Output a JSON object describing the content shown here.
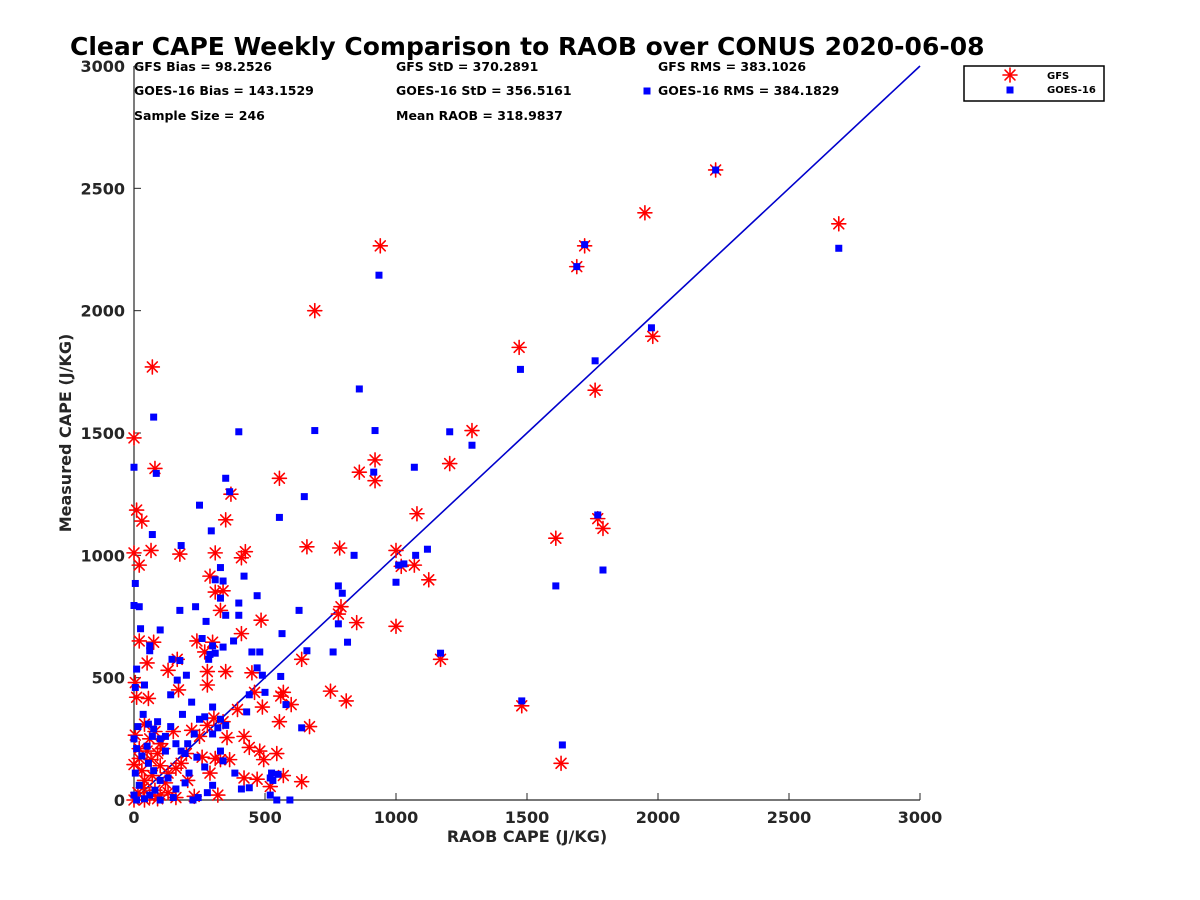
{
  "chart_data": {
    "type": "scatter",
    "title": "Clear CAPE Weekly Comparison to RAOB over CONUS 2020-06-08",
    "xlabel": "RAOB CAPE (J/KG)",
    "ylabel": "Measured CAPE (J/KG)",
    "xlim": [
      0,
      3000
    ],
    "ylim": [
      0,
      3000
    ],
    "xticks": [
      "0",
      "500",
      "1000",
      "1500",
      "2000",
      "2500",
      "3000"
    ],
    "yticks": [
      "0",
      "500",
      "1000",
      "1500",
      "2000",
      "2500",
      "3000"
    ],
    "grid": false,
    "legend_position": "top-right outside",
    "stats": {
      "gfs_bias": "GFS Bias = 98.2526",
      "gfs_std": "GFS StD = 370.2891",
      "gfs_rms": "GFS RMS = 383.1026",
      "goes_bias": "GOES-16 Bias = 143.1529",
      "goes_std": "GOES-16 StD = 356.5161",
      "goes_rms": "GOES-16 RMS = 384.1829",
      "sample_size": "Sample Size = 246",
      "mean_raob": "Mean RAOB = 318.9837"
    },
    "reference_line": {
      "name": "1:1",
      "x": [
        0,
        3000
      ],
      "y": [
        0,
        3000
      ],
      "color": "#0000cc"
    },
    "series": [
      {
        "name": "GFS",
        "marker": "asterisk",
        "color": "#ff0000",
        "points": [
          [
            2220,
            2575
          ],
          [
            2690,
            2355
          ],
          [
            1950,
            2400
          ],
          [
            1720,
            2265
          ],
          [
            1690,
            2180
          ],
          [
            940,
            2265
          ],
          [
            690,
            2000
          ],
          [
            1470,
            1850
          ],
          [
            1980,
            1895
          ],
          [
            1760,
            1675
          ],
          [
            1770,
            1150
          ],
          [
            1790,
            1110
          ],
          [
            1610,
            1070
          ],
          [
            1290,
            1510
          ],
          [
            1205,
            1375
          ],
          [
            920,
            1390
          ],
          [
            920,
            1305
          ],
          [
            860,
            1340
          ],
          [
            1080,
            1170
          ],
          [
            1000,
            1020
          ],
          [
            1020,
            955
          ],
          [
            1070,
            960
          ],
          [
            1125,
            900
          ],
          [
            1000,
            710
          ],
          [
            1170,
            575
          ],
          [
            1480,
            385
          ],
          [
            1630,
            150
          ],
          [
            0,
            1480
          ],
          [
            70,
            1770
          ],
          [
            80,
            1355
          ],
          [
            555,
            1315
          ],
          [
            370,
            1250
          ],
          [
            350,
            1145
          ],
          [
            10,
            1185
          ],
          [
            30,
            1140
          ],
          [
            0,
            1010
          ],
          [
            20,
            960
          ],
          [
            65,
            1020
          ],
          [
            175,
            1005
          ],
          [
            310,
            1010
          ],
          [
            410,
            990
          ],
          [
            425,
            1015
          ],
          [
            290,
            915
          ],
          [
            310,
            850
          ],
          [
            340,
            855
          ],
          [
            330,
            775
          ],
          [
            410,
            680
          ],
          [
            485,
            735
          ],
          [
            560,
            425
          ],
          [
            570,
            440
          ],
          [
            660,
            1035
          ],
          [
            785,
            1030
          ],
          [
            790,
            790
          ],
          [
            780,
            760
          ],
          [
            850,
            725
          ],
          [
            640,
            575
          ],
          [
            670,
            300
          ],
          [
            640,
            75
          ],
          [
            750,
            445
          ],
          [
            810,
            405
          ],
          [
            20,
            650
          ],
          [
            75,
            645
          ],
          [
            50,
            560
          ],
          [
            165,
            575
          ],
          [
            130,
            530
          ],
          [
            170,
            450
          ],
          [
            240,
            650
          ],
          [
            270,
            605
          ],
          [
            300,
            645
          ],
          [
            280,
            525
          ],
          [
            350,
            525
          ],
          [
            450,
            520
          ],
          [
            460,
            440
          ],
          [
            490,
            380
          ],
          [
            395,
            370
          ],
          [
            280,
            470
          ],
          [
            305,
            335
          ],
          [
            340,
            320
          ],
          [
            280,
            305
          ],
          [
            220,
            285
          ],
          [
            250,
            260
          ],
          [
            355,
            255
          ],
          [
            420,
            260
          ],
          [
            440,
            215
          ],
          [
            480,
            200
          ],
          [
            495,
            165
          ],
          [
            545,
            190
          ],
          [
            555,
            320
          ],
          [
            600,
            390
          ],
          [
            570,
            100
          ],
          [
            520,
            55
          ],
          [
            470,
            85
          ],
          [
            420,
            90
          ],
          [
            330,
            165
          ],
          [
            365,
            165
          ],
          [
            310,
            170
          ],
          [
            290,
            110
          ],
          [
            260,
            175
          ],
          [
            180,
            150
          ],
          [
            160,
            130
          ],
          [
            205,
            80
          ],
          [
            130,
            110
          ],
          [
            200,
            190
          ],
          [
            100,
            230
          ],
          [
            60,
            250
          ],
          [
            40,
            310
          ],
          [
            80,
            280
          ],
          [
            150,
            280
          ],
          [
            20,
            170
          ],
          [
            50,
            200
          ],
          [
            100,
            140
          ],
          [
            120,
            70
          ],
          [
            80,
            40
          ],
          [
            40,
            80
          ],
          [
            15,
            30
          ],
          [
            60,
            15
          ],
          [
            100,
            20
          ],
          [
            30,
            120
          ],
          [
            70,
            100
          ],
          [
            130,
            30
          ],
          [
            160,
            10
          ],
          [
            230,
            15
          ],
          [
            320,
            20
          ],
          [
            10,
            420
          ],
          [
            55,
            415
          ],
          [
            5,
            480
          ],
          [
            0,
            0
          ],
          [
            40,
            0
          ],
          [
            90,
            5
          ],
          [
            35,
            50
          ],
          [
            0,
            145
          ],
          [
            20,
            210
          ],
          [
            5,
            265
          ],
          [
            65,
            165
          ],
          [
            90,
            190
          ],
          [
            110,
            210
          ]
        ]
      },
      {
        "name": "GOES-16",
        "marker": "square",
        "color": "#0000ff",
        "points": [
          [
            2220,
            2575
          ],
          [
            2690,
            2255
          ],
          [
            1720,
            2270
          ],
          [
            1690,
            2180
          ],
          [
            935,
            2145
          ],
          [
            1975,
            1930
          ],
          [
            1760,
            1795
          ],
          [
            1475,
            1760
          ],
          [
            1290,
            1450
          ],
          [
            1205,
            1505
          ],
          [
            920,
            1510
          ],
          [
            690,
            1510
          ],
          [
            860,
            1680
          ],
          [
            1770,
            1165
          ],
          [
            1790,
            940
          ],
          [
            1610,
            875
          ],
          [
            1480,
            405
          ],
          [
            1635,
            225
          ],
          [
            1070,
            1360
          ],
          [
            915,
            1340
          ],
          [
            1120,
            1025
          ],
          [
            1075,
            1000
          ],
          [
            1010,
            960
          ],
          [
            1030,
            965
          ],
          [
            1000,
            890
          ],
          [
            1170,
            600
          ],
          [
            840,
            1000
          ],
          [
            780,
            875
          ],
          [
            795,
            845
          ],
          [
            780,
            720
          ],
          [
            815,
            645
          ],
          [
            760,
            605
          ],
          [
            650,
            1240
          ],
          [
            555,
            1155
          ],
          [
            630,
            775
          ],
          [
            565,
            680
          ],
          [
            660,
            610
          ],
          [
            640,
            295
          ],
          [
            580,
            390
          ],
          [
            560,
            505
          ],
          [
            595,
            0
          ],
          [
            545,
            0
          ],
          [
            550,
            105
          ],
          [
            520,
            90
          ],
          [
            490,
            510
          ],
          [
            480,
            605
          ],
          [
            450,
            605
          ],
          [
            470,
            540
          ],
          [
            440,
            430
          ],
          [
            430,
            360
          ],
          [
            500,
            440
          ],
          [
            400,
            1505
          ],
          [
            350,
            1315
          ],
          [
            365,
            1260
          ],
          [
            295,
            1100
          ],
          [
            250,
            1205
          ],
          [
            180,
            1040
          ],
          [
            70,
            1085
          ],
          [
            75,
            1565
          ],
          [
            85,
            1335
          ],
          [
            0,
            1360
          ],
          [
            5,
            885
          ],
          [
            0,
            795
          ],
          [
            20,
            790
          ],
          [
            175,
            775
          ],
          [
            235,
            790
          ],
          [
            330,
            950
          ],
          [
            310,
            900
          ],
          [
            340,
            895
          ],
          [
            330,
            825
          ],
          [
            400,
            805
          ],
          [
            400,
            755
          ],
          [
            420,
            915
          ],
          [
            470,
            835
          ],
          [
            350,
            755
          ],
          [
            275,
            730
          ],
          [
            300,
            630
          ],
          [
            340,
            625
          ],
          [
            380,
            650
          ],
          [
            290,
            595
          ],
          [
            310,
            600
          ],
          [
            285,
            575
          ],
          [
            260,
            660
          ],
          [
            100,
            695
          ],
          [
            25,
            700
          ],
          [
            60,
            630
          ],
          [
            10,
            535
          ],
          [
            5,
            460
          ],
          [
            40,
            470
          ],
          [
            60,
            610
          ],
          [
            145,
            575
          ],
          [
            175,
            570
          ],
          [
            200,
            510
          ],
          [
            165,
            490
          ],
          [
            140,
            430
          ],
          [
            185,
            350
          ],
          [
            220,
            400
          ],
          [
            250,
            330
          ],
          [
            270,
            340
          ],
          [
            300,
            380
          ],
          [
            330,
            330
          ],
          [
            350,
            305
          ],
          [
            320,
            295
          ],
          [
            300,
            270
          ],
          [
            330,
            200
          ],
          [
            340,
            160
          ],
          [
            270,
            135
          ],
          [
            240,
            175
          ],
          [
            195,
            190
          ],
          [
            210,
            110
          ],
          [
            195,
            70
          ],
          [
            160,
            45
          ],
          [
            130,
            90
          ],
          [
            120,
            200
          ],
          [
            100,
            250
          ],
          [
            75,
            290
          ],
          [
            55,
            310
          ],
          [
            35,
            350
          ],
          [
            15,
            300
          ],
          [
            0,
            250
          ],
          [
            10,
            210
          ],
          [
            30,
            180
          ],
          [
            55,
            150
          ],
          [
            75,
            120
          ],
          [
            100,
            80
          ],
          [
            80,
            40
          ],
          [
            60,
            20
          ],
          [
            40,
            5
          ],
          [
            20,
            60
          ],
          [
            5,
            110
          ],
          [
            0,
            20
          ],
          [
            10,
            0
          ],
          [
            100,
            0
          ],
          [
            150,
            10
          ],
          [
            225,
            0
          ],
          [
            245,
            10
          ],
          [
            280,
            30
          ],
          [
            300,
            60
          ],
          [
            385,
            110
          ],
          [
            410,
            45
          ],
          [
            440,
            50
          ],
          [
            520,
            20
          ],
          [
            525,
            110
          ],
          [
            530,
            80
          ],
          [
            50,
            220
          ],
          [
            70,
            260
          ],
          [
            90,
            320
          ],
          [
            120,
            260
          ],
          [
            140,
            300
          ],
          [
            160,
            230
          ],
          [
            180,
            200
          ],
          [
            205,
            230
          ],
          [
            230,
            270
          ]
        ]
      }
    ]
  }
}
